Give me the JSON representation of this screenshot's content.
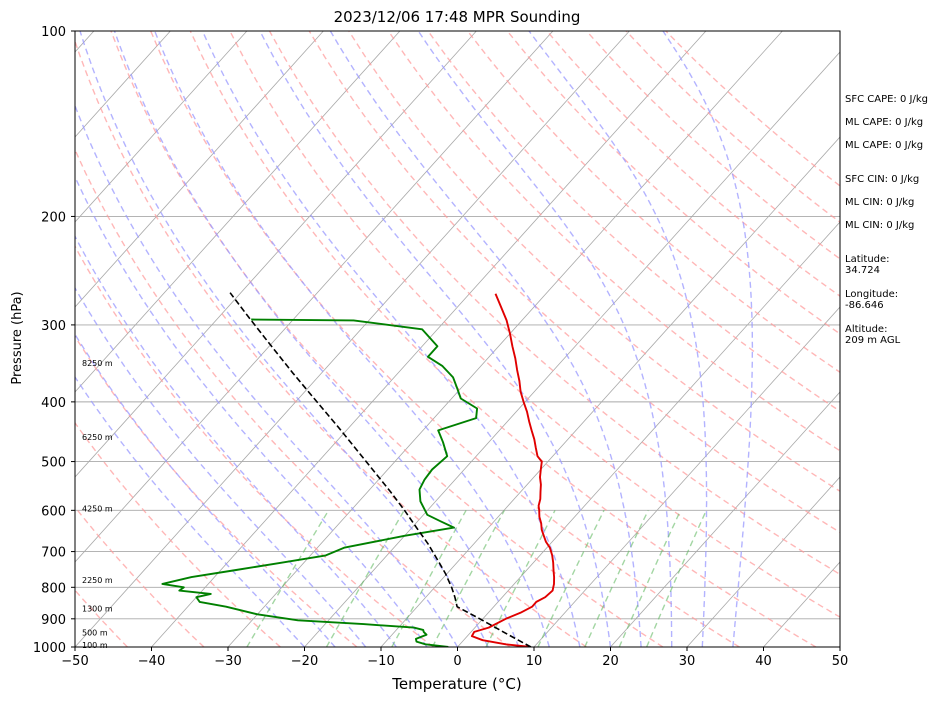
{
  "chart_data": {
    "type": "line",
    "title": "2023/12/06 17:48 MPR Sounding",
    "xlabel": "Temperature (°C)",
    "ylabel": "Pressure (hPa)",
    "xlim": [
      -50,
      50
    ],
    "ylim": [
      1000,
      100
    ],
    "y_scale": "log",
    "skew": true,
    "x_ticks": [
      -50,
      -40,
      -30,
      -20,
      -10,
      0,
      10,
      20,
      30,
      40,
      50
    ],
    "y_ticks": [
      100,
      200,
      300,
      400,
      500,
      600,
      700,
      800,
      900,
      1000
    ],
    "grid": true,
    "series": [
      {
        "color": "#e00000",
        "points": [
          [
            1000,
            9.6
          ],
          [
            990,
            6.0
          ],
          [
            975,
            2.5
          ],
          [
            960,
            0.6
          ],
          [
            945,
            0.4
          ],
          [
            930,
            1.8
          ],
          [
            900,
            3.0
          ],
          [
            880,
            4.2
          ],
          [
            860,
            5.0
          ],
          [
            845,
            5.0
          ],
          [
            830,
            5.6
          ],
          [
            810,
            5.8
          ],
          [
            790,
            5.2
          ],
          [
            770,
            4.4
          ],
          [
            750,
            3.5
          ],
          [
            730,
            2.6
          ],
          [
            710,
            1.6
          ],
          [
            690,
            0.4
          ],
          [
            675,
            -0.8
          ],
          [
            660,
            -1.8
          ],
          [
            645,
            -2.8
          ],
          [
            630,
            -3.6
          ],
          [
            615,
            -4.6
          ],
          [
            600,
            -5.4
          ],
          [
            590,
            -6.0
          ],
          [
            575,
            -6.6
          ],
          [
            560,
            -7.4
          ],
          [
            545,
            -8.2
          ],
          [
            530,
            -9.2
          ],
          [
            515,
            -10.0
          ],
          [
            500,
            -10.8
          ],
          [
            490,
            -12.0
          ],
          [
            475,
            -13.2
          ],
          [
            460,
            -14.4
          ],
          [
            445,
            -15.8
          ],
          [
            430,
            -17.2
          ],
          [
            415,
            -18.6
          ],
          [
            400,
            -20.2
          ],
          [
            385,
            -21.8
          ],
          [
            370,
            -23.2
          ],
          [
            355,
            -24.8
          ],
          [
            340,
            -26.4
          ],
          [
            325,
            -28.2
          ],
          [
            310,
            -30.0
          ],
          [
            295,
            -32.0
          ],
          [
            280,
            -34.4
          ],
          [
            267,
            -36.6
          ]
        ]
      },
      {
        "color": "#008000",
        "points": [
          [
            1000,
            -1.2
          ],
          [
            990,
            -4.5
          ],
          [
            980,
            -6.0
          ],
          [
            970,
            -6.4
          ],
          [
            955,
            -5.5
          ],
          [
            945,
            -6.2
          ],
          [
            938,
            -6.5
          ],
          [
            930,
            -8.0
          ],
          [
            918,
            -15.0
          ],
          [
            905,
            -24.0
          ],
          [
            885,
            -30.0
          ],
          [
            860,
            -35.0
          ],
          [
            845,
            -39.0
          ],
          [
            830,
            -40.0
          ],
          [
            820,
            -38.5
          ],
          [
            810,
            -43.0
          ],
          [
            800,
            -42.8
          ],
          [
            790,
            -46.0
          ],
          [
            770,
            -43.0
          ],
          [
            750,
            -38.0
          ],
          [
            730,
            -33.0
          ],
          [
            710,
            -28.0
          ],
          [
            690,
            -26.5
          ],
          [
            660,
            -20.0
          ],
          [
            640,
            -14.5
          ],
          [
            625,
            -17.0
          ],
          [
            610,
            -19.5
          ],
          [
            580,
            -22.0
          ],
          [
            555,
            -23.5
          ],
          [
            535,
            -24.0
          ],
          [
            515,
            -24.2
          ],
          [
            490,
            -23.8
          ],
          [
            465,
            -26.0
          ],
          [
            445,
            -28.0
          ],
          [
            425,
            -24.5
          ],
          [
            410,
            -25.5
          ],
          [
            395,
            -28.8
          ],
          [
            380,
            -30.5
          ],
          [
            365,
            -32.3
          ],
          [
            350,
            -35.0
          ],
          [
            338,
            -38.0
          ],
          [
            325,
            -38.0
          ],
          [
            305,
            -42.0
          ],
          [
            295,
            -52.0
          ],
          [
            294,
            -65.5
          ]
        ]
      },
      {
        "color": "#000000",
        "dashed": true,
        "points": [
          [
            1000,
            9.6
          ],
          [
            950,
            4.7
          ],
          [
            900,
            -0.4
          ],
          [
            860,
            -4.8
          ],
          [
            830,
            -6.2
          ],
          [
            800,
            -7.8
          ],
          [
            760,
            -10.2
          ],
          [
            720,
            -13.0
          ],
          [
            680,
            -16.0
          ],
          [
            640,
            -19.4
          ],
          [
            600,
            -23.0
          ],
          [
            560,
            -27.0
          ],
          [
            520,
            -31.4
          ],
          [
            480,
            -36.2
          ],
          [
            440,
            -41.4
          ],
          [
            400,
            -47.2
          ],
          [
            360,
            -53.6
          ],
          [
            320,
            -60.6
          ],
          [
            290,
            -66.4
          ],
          [
            266,
            -71.4
          ]
        ]
      }
    ],
    "height_labels": [
      {
        "label": "100 m",
        "p": 992
      },
      {
        "label": "500 m",
        "p": 947
      },
      {
        "label": "1300 m",
        "p": 866
      },
      {
        "label": "2250 m",
        "p": 779
      },
      {
        "label": "4250 m",
        "p": 596
      },
      {
        "label": "6250 m",
        "p": 456
      },
      {
        "label": "8250 m",
        "p": 346
      }
    ],
    "annotations": [
      "SFC CAPE: 0 J/kg",
      "ML CAPE: 0 J/kg",
      "ML CAPE: 0 J/kg",
      "SFC CIN: 0 J/kg",
      "ML CIN: 0 J/kg",
      "ML CIN: 0 J/kg",
      "Latitude:\n34.724",
      "Longitude:\n-86.646",
      "Altitude:\n209 m AGL"
    ],
    "background_lines": {
      "dry_adiabat_color": "#ff9999",
      "moist_adiabat_color": "#9999ff",
      "mixing_ratio_color": "#66bb66",
      "isotherm_color": "#a9a9a9"
    }
  }
}
